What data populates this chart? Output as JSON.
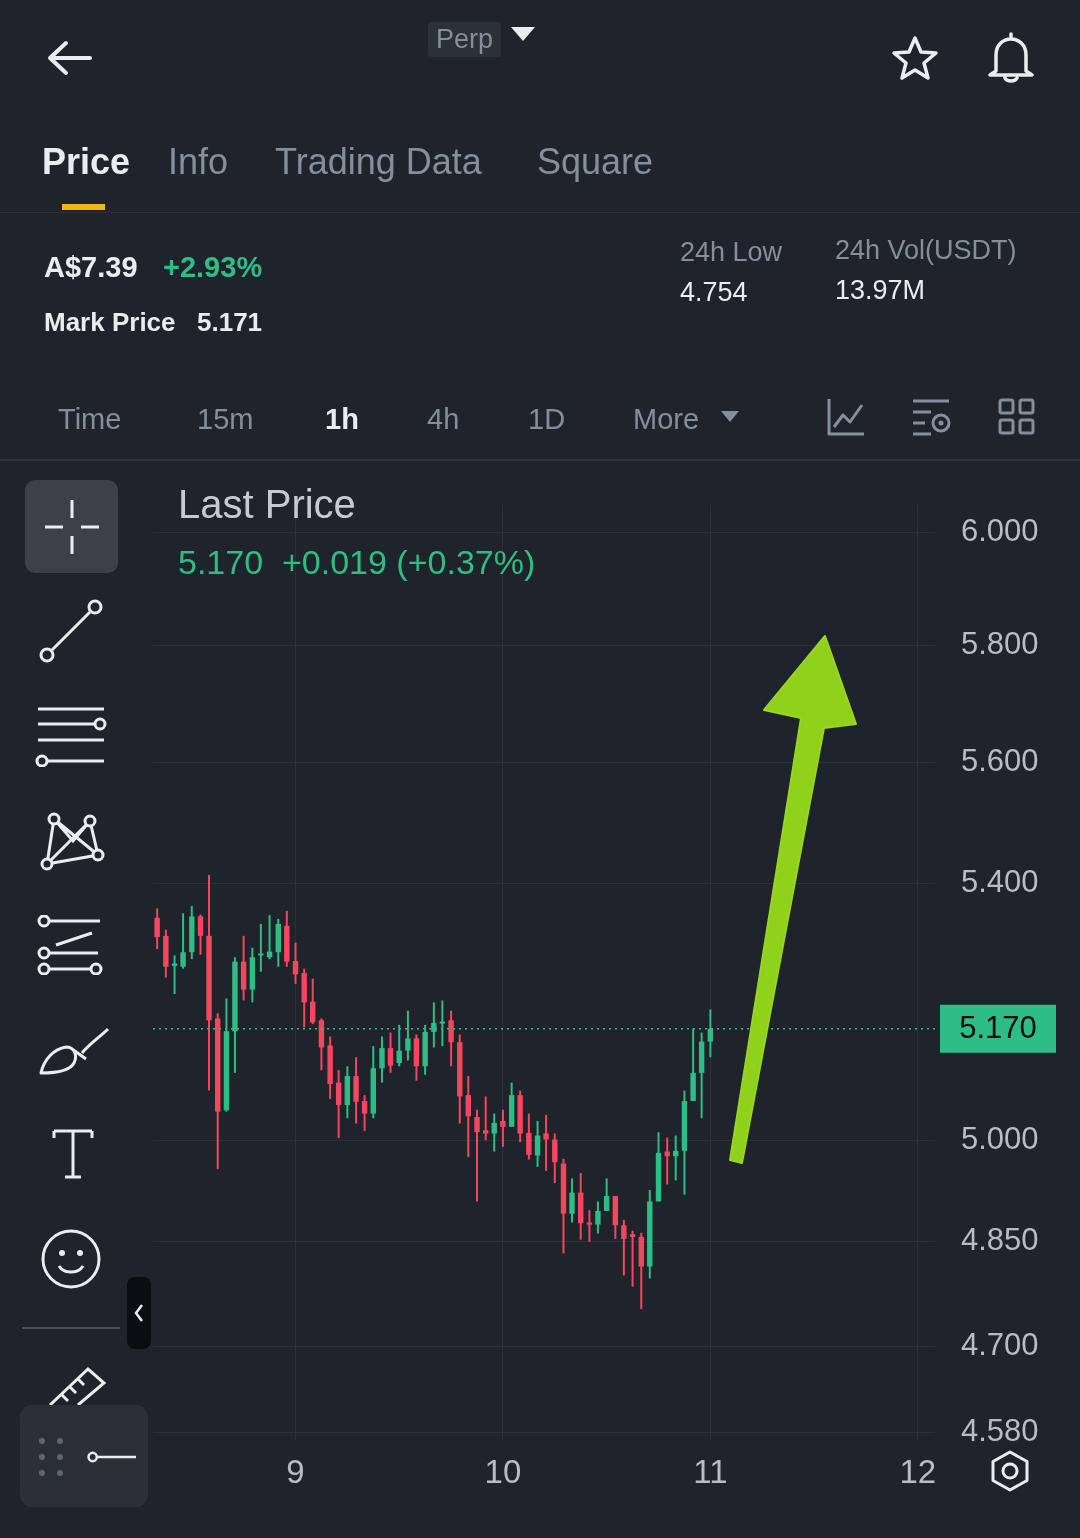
{
  "chart_data": {
    "type": "candlestick",
    "title": "Last Price",
    "subtitle": "5.170  +0.019 (+0.37%)",
    "annotations": [
      "Perp",
      "Price",
      "Info",
      "Trading Data",
      "Square",
      "A$7.39",
      "+2.93%",
      "Mark Price",
      "5.171",
      "24h Low",
      "4.754",
      "24h Vol(USDT)",
      "13.97M",
      "Time",
      "15m",
      "1h",
      "4h",
      "1D",
      "More"
    ],
    "x": [
      8.333,
      8.375,
      8.417,
      8.458,
      8.5,
      8.542,
      8.583,
      8.625,
      8.667,
      8.708,
      8.75,
      8.792,
      8.833,
      8.875,
      8.917,
      8.958,
      9,
      9.042,
      9.083,
      9.125,
      9.167,
      9.208,
      9.25,
      9.292,
      9.333,
      9.375,
      9.417,
      9.458,
      9.5,
      9.542,
      9.583,
      9.625,
      9.667,
      9.708,
      9.75,
      9.792,
      9.833,
      9.875,
      9.917,
      9.958,
      10,
      10.042,
      10.083,
      10.125,
      10.167,
      10.208,
      10.25,
      10.292,
      10.333,
      10.375,
      10.417,
      10.458,
      10.5,
      10.542,
      10.583,
      10.625,
      10.667,
      10.708,
      10.75,
      10.792,
      10.833,
      10.875,
      10.917,
      10.958,
      11
    ],
    "ohlc": [
      [
        5.345,
        5.36,
        5.295,
        5.314
      ],
      [
        5.316,
        5.326,
        5.25,
        5.267
      ],
      [
        5.268,
        5.285,
        5.224,
        5.272
      ],
      [
        5.267,
        5.352,
        5.264,
        5.29
      ],
      [
        5.29,
        5.364,
        5.279,
        5.347
      ],
      [
        5.347,
        5.35,
        5.286,
        5.316
      ],
      [
        5.316,
        5.414,
        5.075,
        5.183
      ],
      [
        5.186,
        5.194,
        4.957,
        5.043
      ],
      [
        5.045,
        5.217,
        5.043,
        5.166
      ],
      [
        5.166,
        5.282,
        5.102,
        5.275
      ],
      [
        5.275,
        5.316,
        5.214,
        5.231
      ],
      [
        5.231,
        5.297,
        5.211,
        5.282
      ],
      [
        5.285,
        5.335,
        5.259,
        5.288
      ],
      [
        5.282,
        5.349,
        5.279,
        5.291
      ],
      [
        5.29,
        5.343,
        5.267,
        5.335
      ],
      [
        5.332,
        5.356,
        5.267,
        5.275
      ],
      [
        5.276,
        5.305,
        5.24,
        5.255
      ],
      [
        5.257,
        5.264,
        5.172,
        5.211
      ],
      [
        5.212,
        5.248,
        5.177,
        5.18
      ],
      [
        5.183,
        5.186,
        5.106,
        5.141
      ],
      [
        5.144,
        5.158,
        5.062,
        5.085
      ],
      [
        5.087,
        5.106,
        5.003,
        5.053
      ],
      [
        5.053,
        5.112,
        5.033,
        5.097
      ],
      [
        5.097,
        5.126,
        5.025,
        5.058
      ],
      [
        5.059,
        5.068,
        5.014,
        5.04
      ],
      [
        5.04,
        5.143,
        5.033,
        5.109
      ],
      [
        5.109,
        5.158,
        5.087,
        5.14
      ],
      [
        5.14,
        5.164,
        5.102,
        5.113
      ],
      [
        5.117,
        5.176,
        5.112,
        5.136
      ],
      [
        5.136,
        5.198,
        5.121,
        5.155
      ],
      [
        5.155,
        5.161,
        5.09,
        5.112
      ],
      [
        5.112,
        5.176,
        5.099,
        5.165
      ],
      [
        5.165,
        5.211,
        5.141,
        5.179
      ],
      [
        5.179,
        5.214,
        5.143,
        5.181
      ],
      [
        5.183,
        5.198,
        5.112,
        5.149
      ],
      [
        5.149,
        5.161,
        5.025,
        5.066
      ],
      [
        5.068,
        5.097,
        4.975,
        5.036
      ],
      [
        5.035,
        5.046,
        4.909,
        5.012
      ],
      [
        5.015,
        5.066,
        5.0,
        5.01
      ],
      [
        5.01,
        5.04,
        4.983,
        5.026
      ],
      [
        5.029,
        5.046,
        4.99,
        5.02
      ],
      [
        5.02,
        5.087,
        5.02,
        5.068
      ],
      [
        5.068,
        5.075,
        4.997,
        5.01
      ],
      [
        5.011,
        5.04,
        4.971,
        4.978
      ],
      [
        4.977,
        5.029,
        4.96,
        5.007
      ],
      [
        5.01,
        5.038,
        4.954,
        5.001
      ],
      [
        5.001,
        5.01,
        4.936,
        4.967
      ],
      [
        4.965,
        4.972,
        4.833,
        4.891
      ],
      [
        4.891,
        4.943,
        4.878,
        4.922
      ],
      [
        4.922,
        4.951,
        4.853,
        4.877
      ],
      [
        4.878,
        4.896,
        4.85,
        4.875
      ],
      [
        4.875,
        4.909,
        4.862,
        4.895
      ],
      [
        4.895,
        4.943,
        4.895,
        4.917
      ],
      [
        4.917,
        4.917,
        4.854,
        4.874
      ],
      [
        4.874,
        4.882,
        4.801,
        4.854
      ],
      [
        4.861,
        4.866,
        4.785,
        4.857
      ],
      [
        4.857,
        4.863,
        4.753,
        4.814
      ],
      [
        4.814,
        4.926,
        4.797,
        4.909
      ],
      [
        4.909,
        5.012,
        4.909,
        4.981
      ],
      [
        4.983,
        5.004,
        4.934,
        4.976
      ],
      [
        4.976,
        5.007,
        4.94,
        4.984
      ],
      [
        4.984,
        5.075,
        4.919,
        5.059
      ],
      [
        5.059,
        5.17,
        5.059,
        5.102
      ],
      [
        5.102,
        5.164,
        5.033,
        5.15
      ],
      [
        5.15,
        5.2,
        5.126,
        5.17
      ]
    ],
    "colors": [
      "#f6465d",
      "#f6465d",
      "#2ebd85",
      "#2ebd85",
      "#2ebd85",
      "#f6465d",
      "#f6465d",
      "#f6465d",
      "#2ebd85",
      "#2ebd85",
      "#f6465d",
      "#2ebd85",
      "#2ebd85",
      "#2ebd85",
      "#2ebd85",
      "#f6465d",
      "#f6465d",
      "#f6465d",
      "#f6465d",
      "#f6465d",
      "#f6465d",
      "#f6465d",
      "#2ebd85",
      "#f6465d",
      "#f6465d",
      "#2ebd85",
      "#2ebd85",
      "#f6465d",
      "#2ebd85",
      "#2ebd85",
      "#f6465d",
      "#2ebd85",
      "#2ebd85",
      "#2ebd85",
      "#f6465d",
      "#f6465d",
      "#f6465d",
      "#f6465d",
      "#f6465d",
      "#2ebd85",
      "#f6465d",
      "#2ebd85",
      "#f6465d",
      "#f6465d",
      "#2ebd85",
      "#f6465d",
      "#f6465d",
      "#f6465d",
      "#2ebd85",
      "#f6465d",
      "#f6465d",
      "#2ebd85",
      "#2ebd85",
      "#f6465d",
      "#f6465d",
      "#f6465d",
      "#f6465d",
      "#2ebd85",
      "#2ebd85",
      "#f6465d",
      "#2ebd85",
      "#2ebd85",
      "#2ebd85",
      "#2ebd85",
      "#2ebd85"
    ],
    "xlim": [
      8.313,
      12.083
    ],
    "xticks": [
      9,
      10,
      11,
      12
    ],
    "ylim": [
      4.57,
      6.05
    ],
    "yticks": [
      {
        "value": 4.58,
        "label": "4.580"
      },
      {
        "value": 4.7,
        "label": "4.700"
      },
      {
        "value": 4.85,
        "label": "4.850"
      },
      {
        "value": 5.0,
        "label": "5.000"
      },
      {
        "value": 5.4,
        "label": "5.400"
      },
      {
        "value": 5.6,
        "label": "5.600"
      },
      {
        "value": 5.8,
        "label": "5.800"
      },
      {
        "value": 6.0,
        "label": "6.000"
      }
    ],
    "log": "y",
    "grid": true,
    "ref_lines": [
      {
        "axis": "y",
        "value": 5.17,
        "label": "5.170",
        "color": "#2ebd85",
        "line_style": "dotted"
      }
    ]
  }
}
